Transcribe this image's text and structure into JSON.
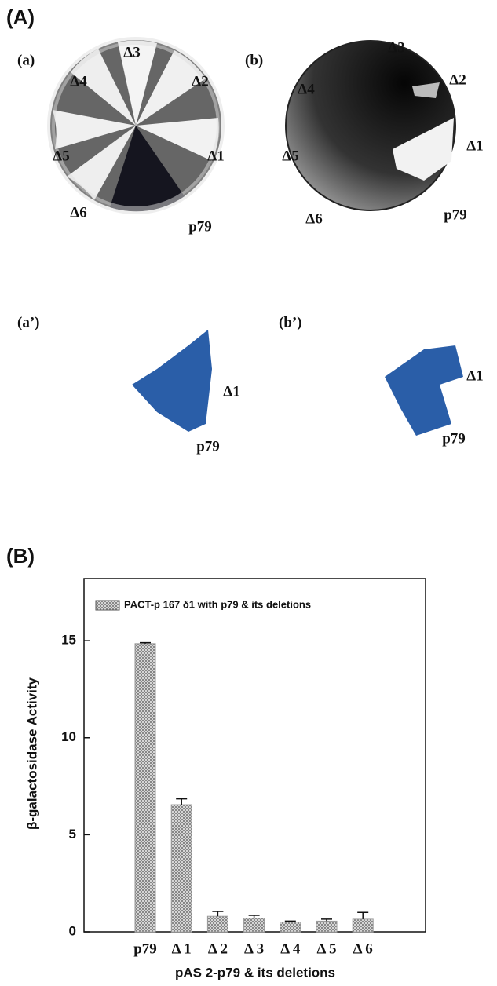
{
  "panel_a": {
    "label": "(A)",
    "plates": [
      {
        "label": "(a)",
        "strains": [
          "Δ3",
          "Δ4",
          "Δ2",
          "Δ5",
          "Δ1",
          "Δ6",
          "p79"
        ]
      },
      {
        "label": "(b)",
        "strains": [
          "Δ3",
          "Δ4",
          "Δ2",
          "Δ5",
          "Δ1",
          "Δ6",
          "p79"
        ]
      },
      {
        "label": "(a’)",
        "strains": [
          "Δ1",
          "p79"
        ]
      },
      {
        "label": "(b’)",
        "strains": [
          "Δ1",
          "p79"
        ]
      }
    ]
  },
  "panel_b": {
    "label": "(B)"
  },
  "chart_data": {
    "type": "bar",
    "legend": "PACT-p 167 δ1 with p79 & its deletions",
    "y_label": "β-galactosidase Activity",
    "x_label": "pAS 2-p79 & its deletions",
    "categories": [
      "p79",
      "Δ 1",
      "Δ 2",
      "Δ 3",
      "Δ 4",
      "Δ 5",
      "Δ 6"
    ],
    "values": [
      14.85,
      6.55,
      0.8,
      0.7,
      0.5,
      0.55,
      0.65
    ],
    "errors": [
      0.05,
      0.3,
      0.25,
      0.15,
      0.05,
      0.1,
      0.35
    ],
    "color": "#9a9a9a",
    "ylim": [
      0,
      18.2
    ],
    "yticks": [
      0,
      5,
      10,
      15
    ]
  }
}
